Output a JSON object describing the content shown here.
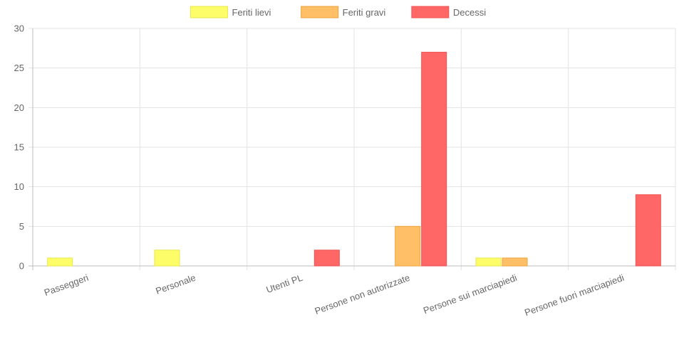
{
  "chart_data": {
    "type": "bar",
    "categories": [
      "Passeggeri",
      "Personale",
      "Utenti PL",
      "Persone non autorizzate",
      "Persone sui marciapiedi",
      "Persone fuori marciapiedi"
    ],
    "series": [
      {
        "name": "Feriti lievi",
        "values": [
          1,
          2,
          0,
          0,
          1,
          0
        ],
        "color": "#fdfd6a",
        "border": "#e8e84a"
      },
      {
        "name": "Feriti gravi",
        "values": [
          0,
          0,
          0,
          5,
          1,
          0
        ],
        "color": "#ffbf66",
        "border": "#eea33b"
      },
      {
        "name": "Decessi",
        "values": [
          0,
          0,
          2,
          27,
          0,
          9
        ],
        "color": "#ff6666",
        "border": "#f25252"
      }
    ],
    "yticks": [
      "0",
      "5",
      "10",
      "15",
      "20",
      "25",
      "30"
    ],
    "ylim": [
      0,
      30
    ],
    "grid": true,
    "legend_position": "top-center",
    "title": "",
    "xlabel": "",
    "ylabel": ""
  }
}
